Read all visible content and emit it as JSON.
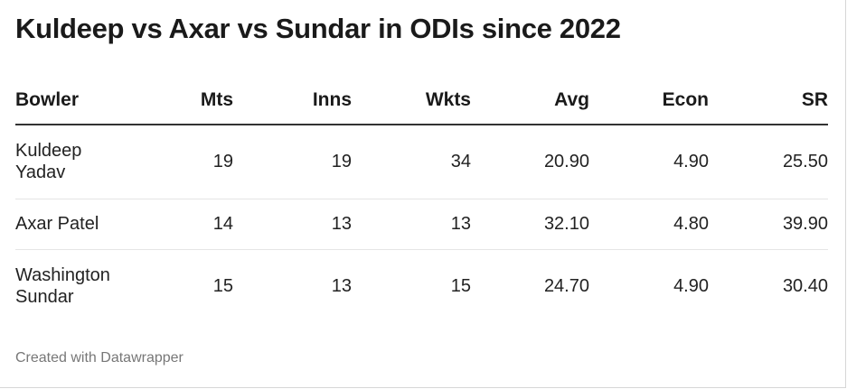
{
  "title": "Kuldeep vs Axar vs Sundar in ODIs since 2022",
  "chart_data": {
    "type": "table",
    "title": "Kuldeep vs Axar vs Sundar in ODIs since 2022",
    "columns": [
      "Bowler",
      "Mts",
      "Inns",
      "Wkts",
      "Avg",
      "Econ",
      "SR"
    ],
    "rows": [
      {
        "bowler_line1": "Kuldeep",
        "bowler_line2": "Yadav",
        "mts": "19",
        "inns": "19",
        "wkts": "34",
        "avg": "20.90",
        "econ": "4.90",
        "sr": "25.50"
      },
      {
        "bowler_line1": "Axar Patel",
        "bowler_line2": "",
        "mts": "14",
        "inns": "13",
        "wkts": "13",
        "avg": "32.10",
        "econ": "4.80",
        "sr": "39.90"
      },
      {
        "bowler_line1": "Washington",
        "bowler_line2": "Sundar",
        "mts": "15",
        "inns": "13",
        "wkts": "15",
        "avg": "24.70",
        "econ": "4.90",
        "sr": "30.40"
      }
    ]
  },
  "footer": "Created with Datawrapper"
}
